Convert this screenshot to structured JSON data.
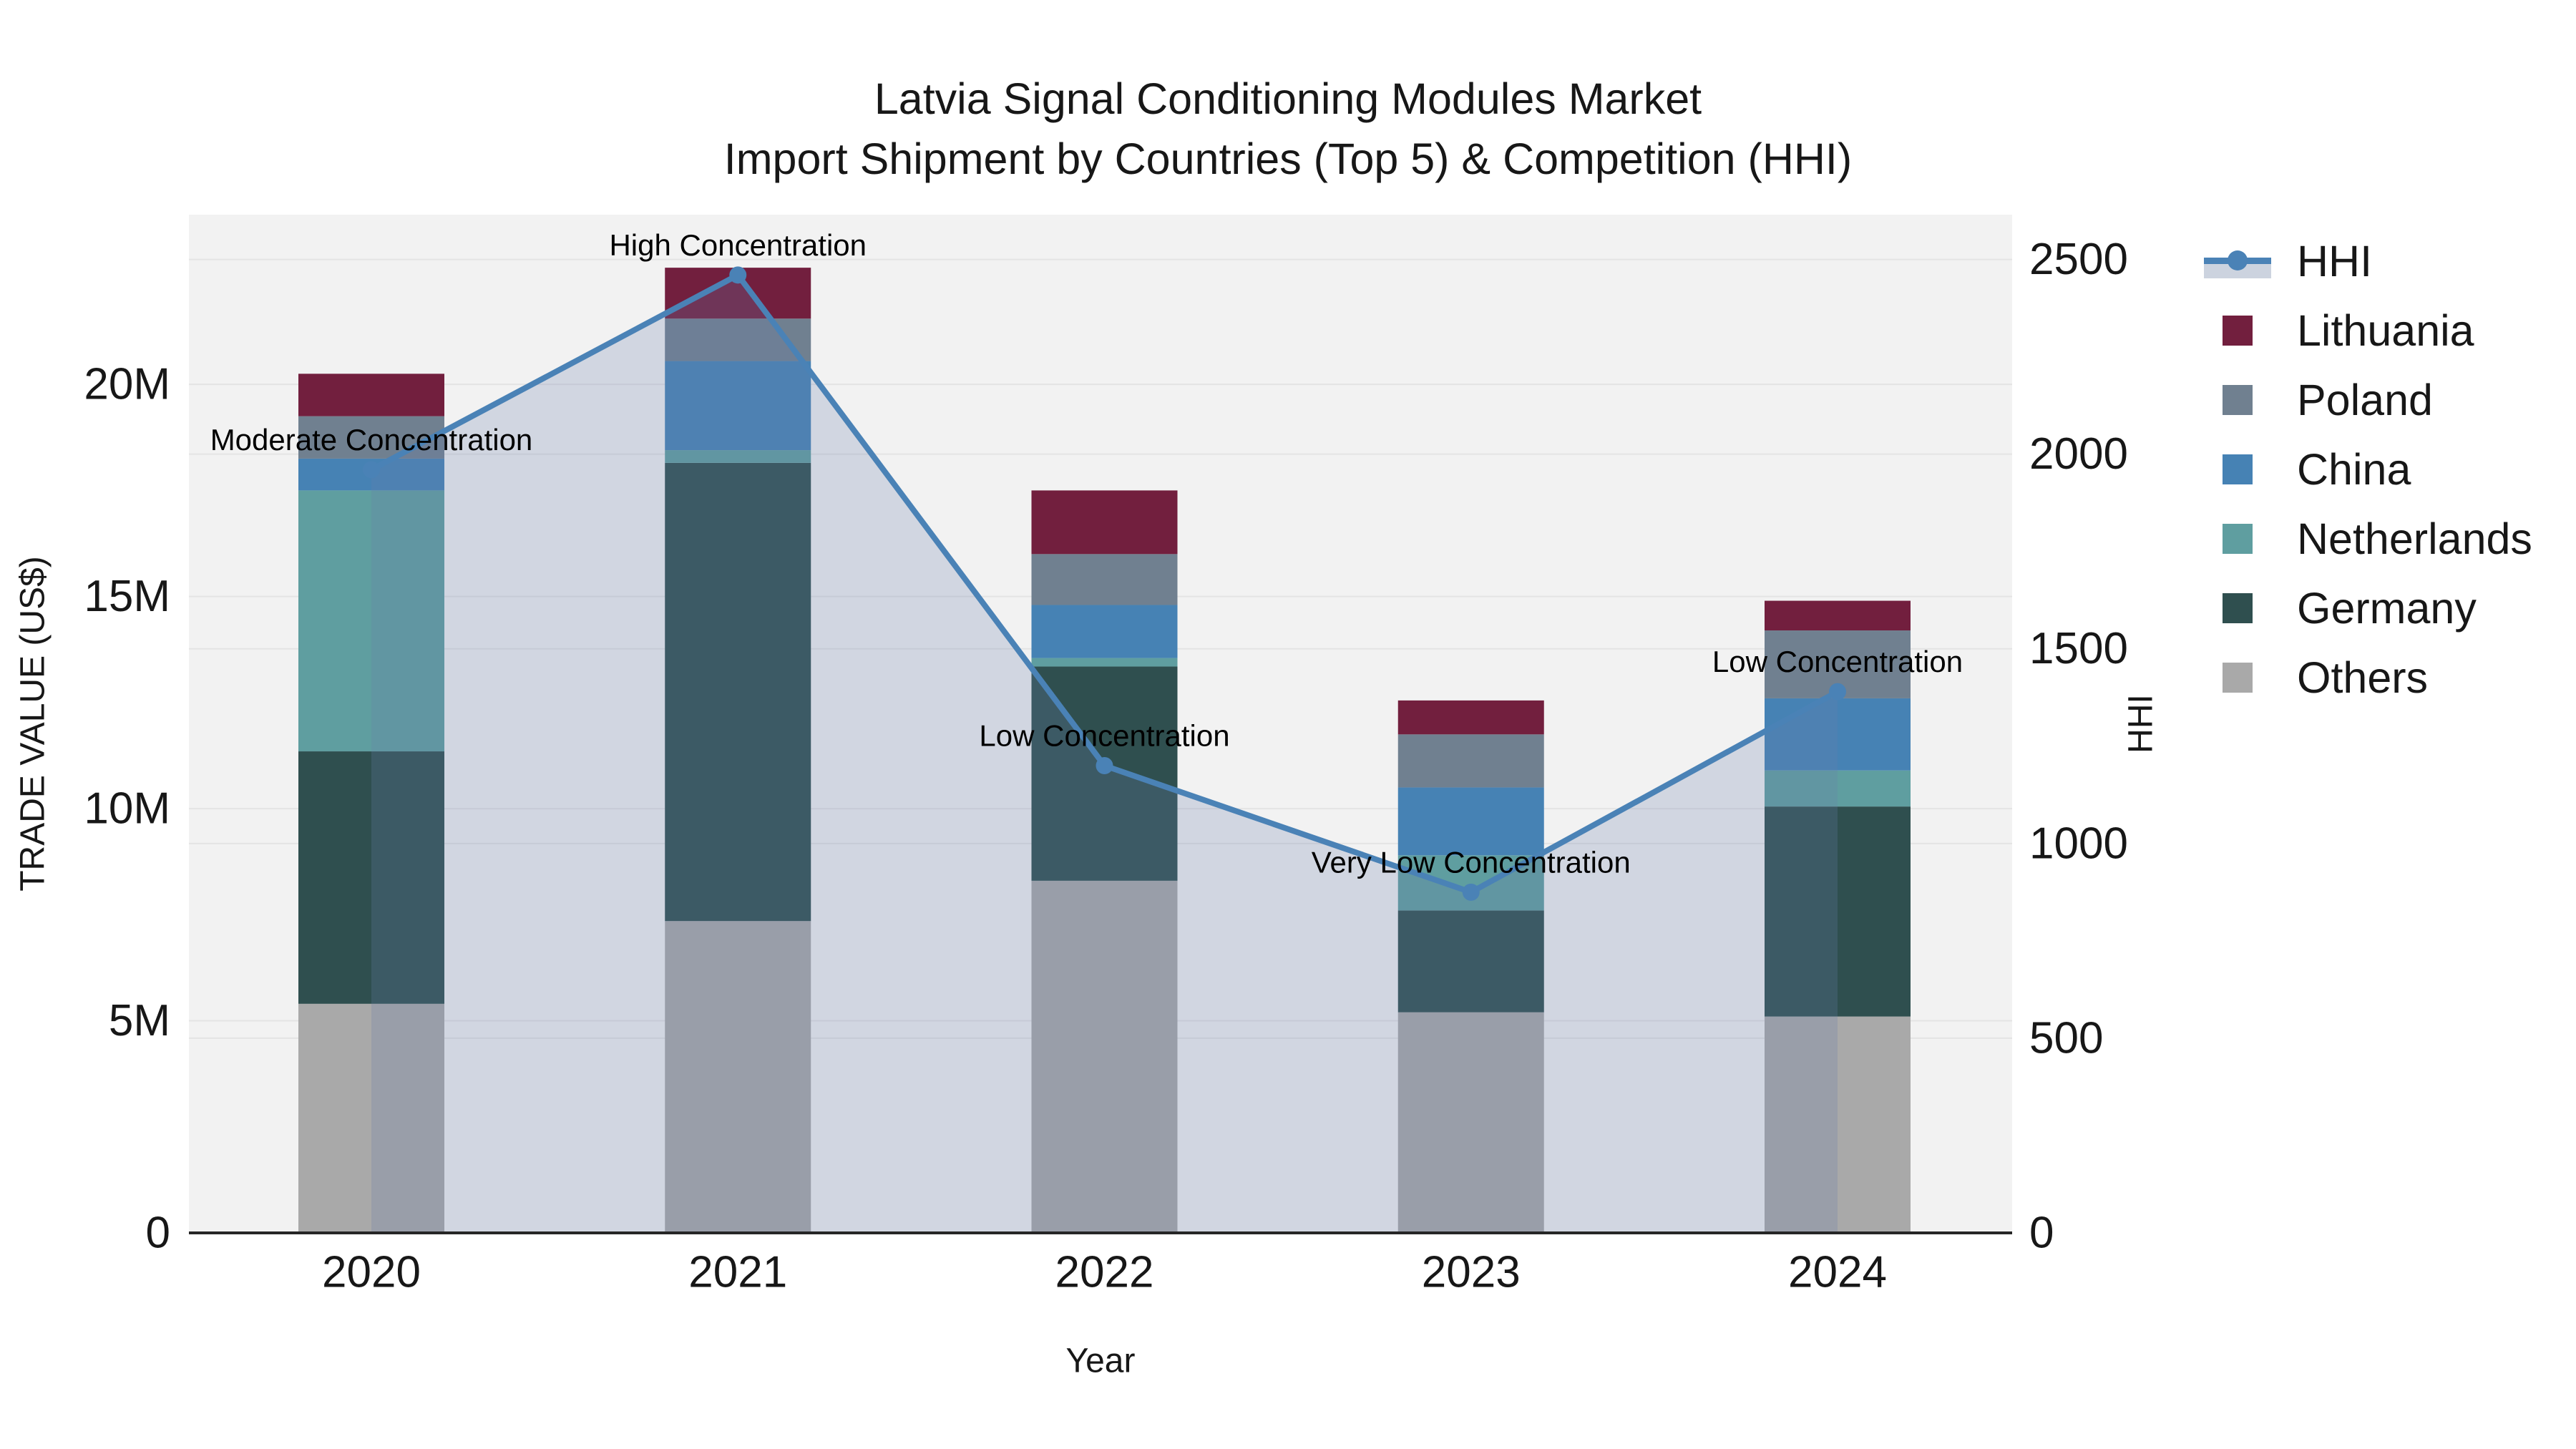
{
  "title": {
    "line1": "Latvia Signal Conditioning Modules Market",
    "line2": "Import Shipment by Countries (Top 5) & Competition (HHI)"
  },
  "chart_data": {
    "type": "bar",
    "subtype": "stacked-bar-with-line-overlay",
    "categories": [
      "2020",
      "2021",
      "2022",
      "2023",
      "2024"
    ],
    "xlabel": "Year",
    "left_axis": {
      "label": "TRADE VALUE (US$)",
      "unit": "USD millions",
      "tick_labels": [
        "0",
        "5M",
        "10M",
        "15M",
        "20M"
      ],
      "tick_values": [
        0,
        5,
        10,
        15,
        20
      ],
      "max": 24
    },
    "right_axis": {
      "label": "HHI",
      "tick_labels": [
        "0",
        "500",
        "1000",
        "1500",
        "2000",
        "2500"
      ],
      "tick_values": [
        0,
        500,
        1000,
        1500,
        2000,
        2500
      ],
      "max": 2615
    },
    "series": [
      {
        "name": "Others",
        "color": "#a9a9a9",
        "values": [
          5.4,
          7.35,
          8.3,
          5.2,
          5.1
        ]
      },
      {
        "name": "Germany",
        "color": "#2f4f4f",
        "values": [
          5.95,
          10.8,
          5.05,
          2.4,
          4.95
        ]
      },
      {
        "name": "Netherlands",
        "color": "#5f9ea0",
        "values": [
          6.15,
          0.3,
          0.2,
          1.3,
          0.85
        ]
      },
      {
        "name": "China",
        "color": "#4682b4",
        "values": [
          0.75,
          2.1,
          1.25,
          1.6,
          1.7
        ]
      },
      {
        "name": "Poland",
        "color": "#708090",
        "values": [
          1.0,
          1.0,
          1.2,
          1.25,
          1.6
        ]
      },
      {
        "name": "Lithuania",
        "color": "#721f3e",
        "values": [
          1.0,
          1.2,
          1.5,
          0.8,
          0.7
        ]
      }
    ],
    "totals": [
      20.25,
      22.75,
      17.5,
      12.55,
      14.9
    ],
    "hhi_series": {
      "name": "HHI",
      "line_color": "#4a82b6",
      "fill_color": "rgba(104,125,171,0.24)",
      "values": [
        1960,
        2460,
        1200,
        875,
        1390
      ]
    },
    "annotations": [
      {
        "category": "2020",
        "text": "Moderate Concentration"
      },
      {
        "category": "2021",
        "text": "High Concentration"
      },
      {
        "category": "2022",
        "text": "Low Concentration"
      },
      {
        "category": "2023",
        "text": "Very Low Concentration"
      },
      {
        "category": "2024",
        "text": "Low Concentration"
      }
    ],
    "legend_position": "right",
    "grid": true
  },
  "legend": {
    "items": [
      {
        "label": "HHI",
        "type": "line",
        "color": "#4a82b6"
      },
      {
        "label": "Lithuania",
        "type": "patch",
        "color": "#721f3e"
      },
      {
        "label": "Poland",
        "type": "patch",
        "color": "#708090"
      },
      {
        "label": "China",
        "type": "patch",
        "color": "#4682b4"
      },
      {
        "label": "Netherlands",
        "type": "patch",
        "color": "#5f9ea0"
      },
      {
        "label": "Germany",
        "type": "patch",
        "color": "#2f4f4f"
      },
      {
        "label": "Others",
        "type": "patch",
        "color": "#a9a9a9"
      }
    ]
  },
  "colors": {
    "plot_background": "#f2f2f2",
    "page_background": "#ffffff",
    "gridline": "#e4e4e4",
    "axis_line": "#262626",
    "text": "#171717",
    "annotation_text": "#000000"
  }
}
